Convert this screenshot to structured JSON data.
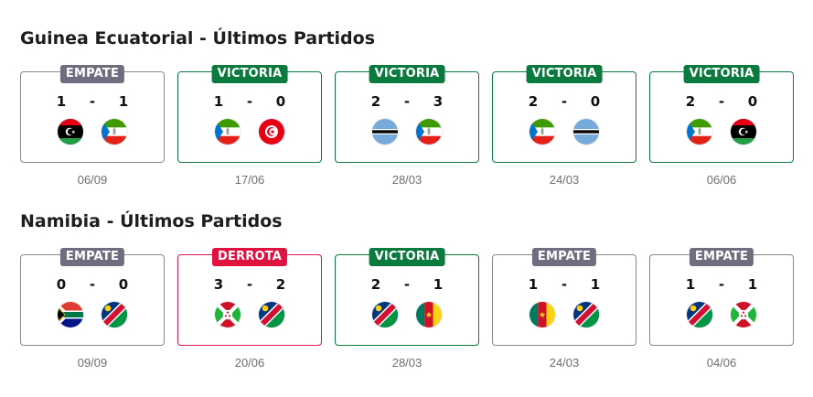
{
  "sections": [
    {
      "title": "Guinea Ecuatorial - Últimos Partidos",
      "matches": [
        {
          "result": "EMPATE",
          "type": "draw",
          "home_score": "1",
          "away_score": "1",
          "home_flag": "libya-flag-icon",
          "away_flag": "equatorial-guinea-flag-icon",
          "date": "06/09"
        },
        {
          "result": "VICTORIA",
          "type": "win",
          "home_score": "1",
          "away_score": "0",
          "home_flag": "equatorial-guinea-flag-icon",
          "away_flag": "tunisia-flag-icon",
          "date": "17/06"
        },
        {
          "result": "VICTORIA",
          "type": "win",
          "home_score": "2",
          "away_score": "3",
          "home_flag": "botswana-flag-icon",
          "away_flag": "equatorial-guinea-flag-icon",
          "date": "28/03"
        },
        {
          "result": "VICTORIA",
          "type": "win",
          "home_score": "2",
          "away_score": "0",
          "home_flag": "equatorial-guinea-flag-icon",
          "away_flag": "botswana-flag-icon",
          "date": "24/03"
        },
        {
          "result": "VICTORIA",
          "type": "win",
          "home_score": "2",
          "away_score": "0",
          "home_flag": "equatorial-guinea-flag-icon",
          "away_flag": "libya-flag-icon",
          "date": "06/06"
        }
      ]
    },
    {
      "title": "Namibia - Últimos Partidos",
      "matches": [
        {
          "result": "EMPATE",
          "type": "draw",
          "home_score": "0",
          "away_score": "0",
          "home_flag": "south-africa-flag-icon",
          "away_flag": "namibia-flag-icon",
          "date": "09/09"
        },
        {
          "result": "DERROTA",
          "type": "loss",
          "home_score": "3",
          "away_score": "2",
          "home_flag": "burundi-flag-icon",
          "away_flag": "namibia-flag-icon",
          "date": "20/06"
        },
        {
          "result": "VICTORIA",
          "type": "win",
          "home_score": "2",
          "away_score": "1",
          "home_flag": "namibia-flag-icon",
          "away_flag": "cameroon-flag-icon",
          "date": "28/03"
        },
        {
          "result": "EMPATE",
          "type": "draw",
          "home_score": "1",
          "away_score": "1",
          "home_flag": "cameroon-flag-icon",
          "away_flag": "namibia-flag-icon",
          "date": "24/03"
        },
        {
          "result": "EMPATE",
          "type": "draw",
          "home_score": "1",
          "away_score": "1",
          "home_flag": "namibia-flag-icon",
          "away_flag": "burundi-flag-icon",
          "date": "04/06"
        }
      ]
    }
  ],
  "score_separator": "-",
  "colors": {
    "win": "#0b7a3e",
    "draw": "#6e6e80",
    "loss": "#e0123f"
  }
}
